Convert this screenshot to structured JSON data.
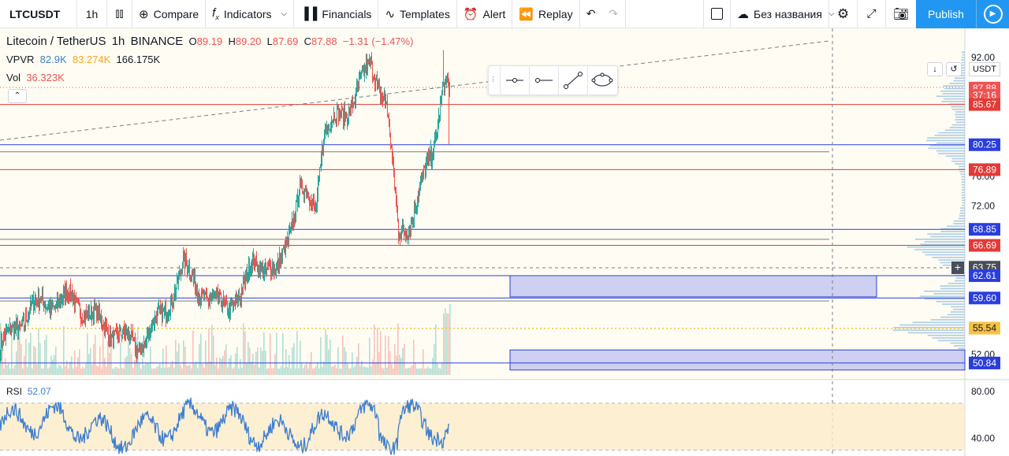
{
  "toolbar": {
    "symbol": "LTCUSDT",
    "interval": "1h",
    "compare": "Compare",
    "indicators": "Indicators",
    "financials": "Financials",
    "templates": "Templates",
    "alert": "Alert",
    "replay": "Replay",
    "layout_name": "Без названия",
    "publish": "Publish"
  },
  "legend": {
    "pair": "Litecoin / TetherUS",
    "interval": "1h",
    "exchange": "BINANCE",
    "o_label": "O",
    "o": "89.19",
    "h_label": "H",
    "h": "89.20",
    "l_label": "L",
    "l": "87.69",
    "c_label": "C",
    "c": "87.88",
    "change": "−1.31 (−1.47%)",
    "vpvr_label": "VPVR",
    "vpvr_1": "82.9K",
    "vpvr_2": "83.274K",
    "vpvr_3": "166.175K",
    "vol_label": "Vol",
    "vol": "36.323K"
  },
  "rsi": {
    "label": "RSI",
    "value": "52.07"
  },
  "price_scale": {
    "currency": "USDT"
  },
  "colors": {
    "up": "#26a69a",
    "down": "#ef5350",
    "blue_line": "#2a3ee0",
    "red_line": "#e53935",
    "rsi_line": "#3d7fd1",
    "zone_fill": "#c5c8f0"
  },
  "chart_data": {
    "type": "candlestick",
    "symbol": "LTCUSDT",
    "interval": "1h",
    "y_axis_ticks": [
      92.0,
      76.0,
      72.0,
      52.0
    ],
    "yrange": [
      48.5,
      93.7
    ],
    "price_labels": [
      {
        "text": "87.88",
        "value": 87.88,
        "color": "#ef5350"
      },
      {
        "text": "37:16",
        "value": 86.9,
        "color": "#ef5350"
      },
      {
        "text": "85.67",
        "value": 85.67,
        "color": "#e53935"
      },
      {
        "text": "80.25",
        "value": 80.25,
        "color": "#2a3ee0"
      },
      {
        "text": "76.89",
        "value": 76.89,
        "color": "#e53935"
      },
      {
        "text": "68.85",
        "value": 68.85,
        "color": "#2a3ee0"
      },
      {
        "text": "66.69",
        "value": 66.69,
        "color": "#e53935"
      },
      {
        "text": "63.75",
        "value": 63.75,
        "color": "#4a4e5a"
      },
      {
        "text": "62.61",
        "value": 62.61,
        "color": "#2a3ee0"
      },
      {
        "text": "59.60",
        "value": 59.6,
        "color": "#2a3ee0"
      },
      {
        "text": "55.54",
        "value": 55.54,
        "color": "#f5c242"
      },
      {
        "text": "50.84",
        "value": 50.84,
        "color": "#2a3ee0"
      }
    ],
    "horizontal_lines": [
      {
        "value": 85.67,
        "color": "#e53935"
      },
      {
        "value": 80.25,
        "color": "#2a3ee0"
      },
      {
        "value": 79.3,
        "color": "#787b86"
      },
      {
        "value": 76.89,
        "color": "#e53935"
      },
      {
        "value": 68.85,
        "color": "#2a3ee0"
      },
      {
        "value": 67.5,
        "color": "#787b86"
      },
      {
        "value": 66.69,
        "color": "#e53935"
      },
      {
        "value": 62.61,
        "color": "#2a3ee0"
      },
      {
        "value": 59.6,
        "color": "#2a3ee0"
      },
      {
        "value": 59.2,
        "color": "#787b86"
      },
      {
        "value": 50.84,
        "color": "#2a3ee0"
      }
    ],
    "zones": [
      {
        "from": 59.75,
        "to": 62.61
      },
      {
        "from": 49.9,
        "to": 52.6
      }
    ],
    "key_points": [
      {
        "t": 0,
        "price": 53.0
      },
      {
        "t": 40,
        "price": 58.4
      },
      {
        "t": 90,
        "price": 59.6
      },
      {
        "t": 130,
        "price": 56.0
      },
      {
        "t": 175,
        "price": 53.0
      },
      {
        "t": 210,
        "price": 58.0
      },
      {
        "t": 232,
        "price": 64.0
      },
      {
        "t": 270,
        "price": 58.5
      },
      {
        "t": 305,
        "price": 59.5
      },
      {
        "t": 322,
        "price": 65.0
      },
      {
        "t": 350,
        "price": 62.5
      },
      {
        "t": 380,
        "price": 74.0
      },
      {
        "t": 400,
        "price": 72.0
      },
      {
        "t": 410,
        "price": 82.0
      },
      {
        "t": 440,
        "price": 85.0
      },
      {
        "t": 470,
        "price": 91.0
      },
      {
        "t": 490,
        "price": 86.0
      },
      {
        "t": 505,
        "price": 68.0
      },
      {
        "t": 520,
        "price": 70.0
      },
      {
        "t": 550,
        "price": 80.0
      },
      {
        "t": 562,
        "price": 89.0
      },
      {
        "t": 570,
        "price": 87.88
      }
    ],
    "rsi_ticks": [
      80.0,
      40.0
    ],
    "rsi_range": [
      25,
      90
    ],
    "rsi_bands": [
      70,
      30
    ],
    "rsi_last": 52.07
  }
}
